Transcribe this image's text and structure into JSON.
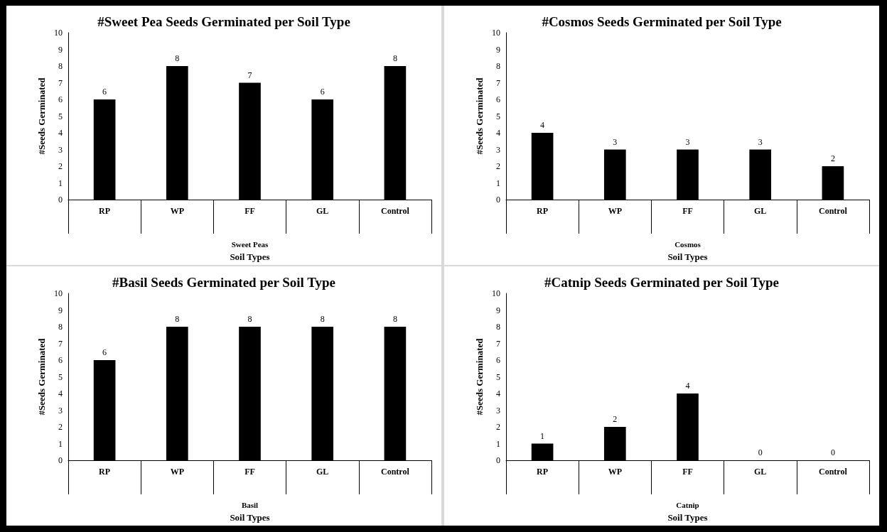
{
  "chart_data": [
    {
      "type": "bar",
      "title": "#Sweet Pea Seeds Germinated per Soil Type",
      "categories": [
        "RP",
        "WP",
        "FF",
        "GL",
        "Control"
      ],
      "values": [
        6,
        8,
        7,
        6,
        8
      ],
      "color": "#000000",
      "ylabel": "#Seeds Germinated",
      "xlabel": "Soil Types",
      "annotations": [
        "Sweet Peas"
      ],
      "ylim": [
        0,
        10
      ],
      "yticks": [
        0,
        1,
        2,
        3,
        4,
        5,
        6,
        7,
        8,
        9,
        10
      ],
      "data_labels": true,
      "grid": false
    },
    {
      "type": "bar",
      "title": "#Cosmos Seeds Germinated per Soil Type",
      "categories": [
        "RP",
        "WP",
        "FF",
        "GL",
        "Control"
      ],
      "values": [
        4,
        3,
        3,
        3,
        2
      ],
      "color": "#000000",
      "ylabel": "#Seeds Germinated",
      "xlabel": "Soil Types",
      "annotations": [
        "Cosmos"
      ],
      "ylim": [
        0,
        10
      ],
      "yticks": [
        0,
        1,
        2,
        3,
        4,
        5,
        6,
        7,
        8,
        9,
        10
      ],
      "data_labels": true,
      "grid": false
    },
    {
      "type": "bar",
      "title": "#Basil Seeds Germinated per Soil Type",
      "categories": [
        "RP",
        "WP",
        "FF",
        "GL",
        "Control"
      ],
      "values": [
        6,
        8,
        8,
        8,
        8
      ],
      "color": "#000000",
      "ylabel": "#Seeds Germinated",
      "xlabel": "Soil Types",
      "annotations": [
        "Basil"
      ],
      "ylim": [
        0,
        10
      ],
      "yticks": [
        0,
        1,
        2,
        3,
        4,
        5,
        6,
        7,
        8,
        9,
        10
      ],
      "data_labels": true,
      "grid": false
    },
    {
      "type": "bar",
      "title": "#Catnip Seeds Germinated per Soil Type",
      "categories": [
        "RP",
        "WP",
        "FF",
        "GL",
        "Control"
      ],
      "values": [
        1,
        2,
        4,
        0,
        0
      ],
      "color": "#000000",
      "ylabel": "#Seeds Germinated",
      "xlabel": "Soil Types",
      "annotations": [
        "Catnip"
      ],
      "ylim": [
        0,
        10
      ],
      "yticks": [
        0,
        1,
        2,
        3,
        4,
        5,
        6,
        7,
        8,
        9,
        10
      ],
      "data_labels": true,
      "grid": false
    }
  ]
}
